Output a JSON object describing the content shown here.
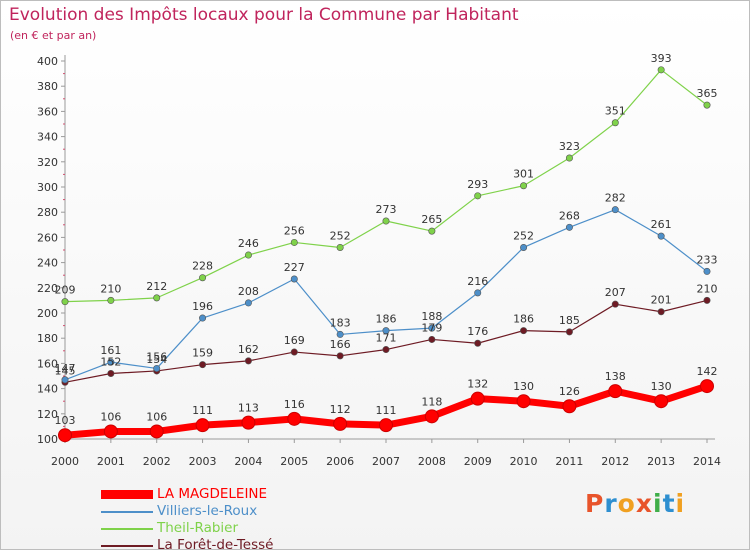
{
  "title": "Evolution des Impôts locaux pour la Commune par Habitant",
  "subtitle": "(en € et par an)",
  "logo": {
    "text": "Proxiti",
    "colors": [
      "#e8542b",
      "#2e8fd0",
      "#f0a020",
      "#e8542b",
      "#3fae49",
      "#2e8fd0",
      "#f0a020"
    ]
  },
  "chart_data": {
    "type": "line",
    "x": [
      2000,
      2001,
      2002,
      2003,
      2004,
      2005,
      2006,
      2007,
      2008,
      2009,
      2010,
      2011,
      2012,
      2013,
      2014
    ],
    "ylim": [
      100,
      400
    ],
    "yticks": [
      100,
      120,
      140,
      160,
      180,
      200,
      220,
      240,
      260,
      280,
      300,
      320,
      340,
      360,
      380,
      400
    ],
    "grid": false,
    "legend_position": "bottom-left",
    "series": [
      {
        "name": "LA MAGDELEINE",
        "color": "#ff0000",
        "values": [
          103,
          106,
          106,
          111,
          113,
          116,
          112,
          111,
          118,
          132,
          130,
          126,
          138,
          130,
          142
        ]
      },
      {
        "name": "Villiers-le-Roux",
        "color": "#4d8fc9",
        "values": [
          147,
          161,
          156,
          196,
          208,
          227,
          183,
          186,
          188,
          216,
          252,
          268,
          282,
          261,
          233
        ]
      },
      {
        "name": "Theil-Rabier",
        "color": "#7fd24a",
        "values": [
          209,
          210,
          212,
          228,
          246,
          256,
          252,
          273,
          265,
          293,
          301,
          323,
          351,
          393,
          365
        ]
      },
      {
        "name": "La Forêt-de-Tessé",
        "color": "#6e1b24",
        "values": [
          145,
          152,
          154,
          159,
          162,
          169,
          166,
          171,
          179,
          176,
          186,
          185,
          207,
          201,
          210
        ]
      }
    ]
  }
}
